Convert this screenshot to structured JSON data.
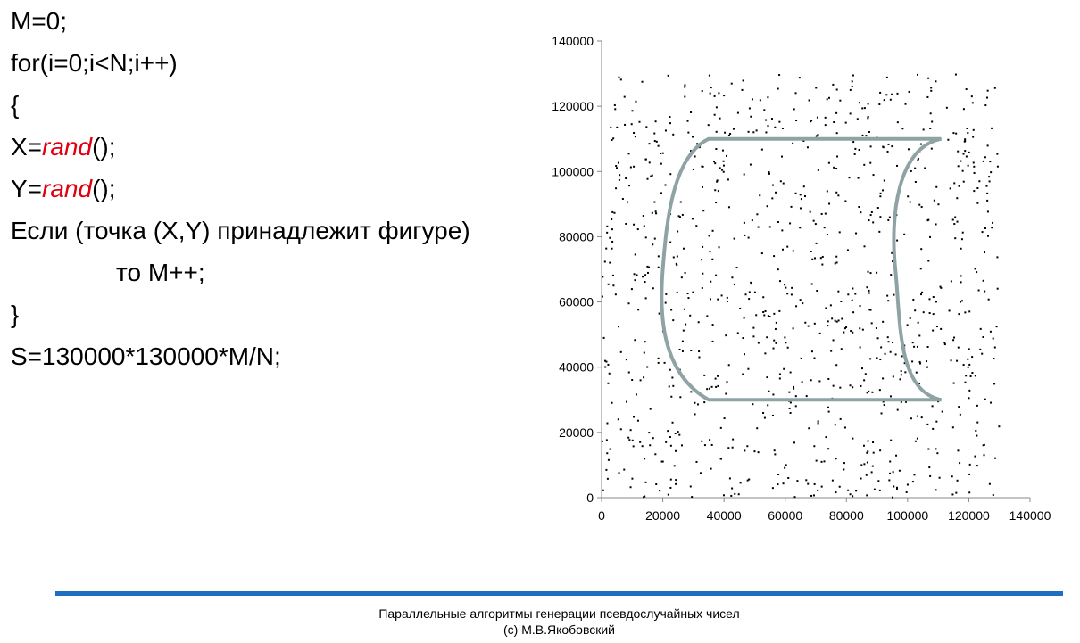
{
  "code": {
    "line1": "M=0;",
    "line2": "for(i=0;i<N;i++)",
    "line3": "{",
    "line4_prefix": "X=",
    "line4_fn": "rand",
    "line4_suffix": "();",
    "line5_prefix": "Y=",
    "line5_fn": "rand",
    "line5_suffix": "();",
    "line6": "Если (точка (X,Y) принадлежит фигуре)",
    "line7": "то M++;",
    "line8": "}",
    "line9": "S=130000*130000*M/N;"
  },
  "footer": {
    "line1": "Параллельные алгоритмы генерации псевдослучайных чисел",
    "line2": "(c) М.В.Якобовский"
  },
  "colors": {
    "fn_color": "#e0000f",
    "figure_stroke": "#8fa3a5",
    "footer_bar": "#1f6fc0",
    "points": "#000000"
  },
  "chart_data": {
    "type": "scatter",
    "xlim": [
      0,
      140000
    ],
    "ylim": [
      0,
      140000
    ],
    "x_ticks": [
      "0",
      "20000",
      "40000",
      "60000",
      "80000",
      "100000",
      "120000",
      "140000"
    ],
    "y_ticks": [
      "0",
      "20000",
      "40000",
      "60000",
      "80000",
      "100000",
      "120000",
      "140000"
    ],
    "grid": false,
    "legend": "none",
    "point_count": 1000,
    "point_range": [
      0,
      130000
    ],
    "figure": {
      "top": 110000,
      "bottom": 30000,
      "left_straight_x": 35000,
      "right_straight_x": 111000,
      "left_bulge_x": 20000,
      "right_inner_x": 96000
    }
  }
}
